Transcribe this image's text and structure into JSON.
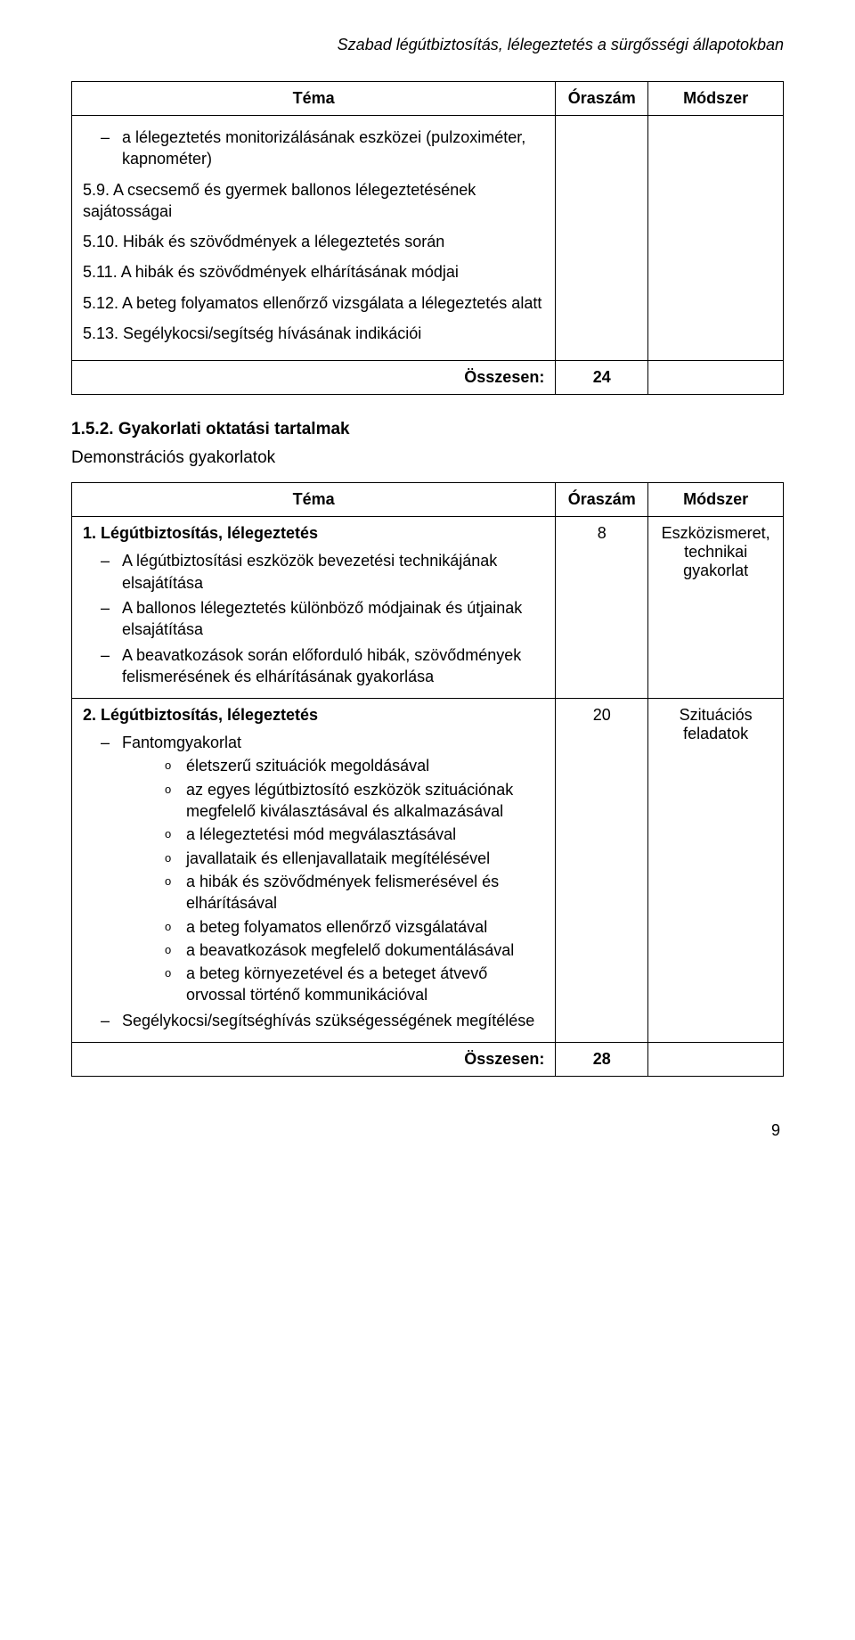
{
  "header": {
    "title": "Szabad légútbiztosítás, lélegeztetés a sürgősségi állapotokban"
  },
  "table1": {
    "headers": {
      "tema": "Téma",
      "oraszam": "Óraszám",
      "modszer": "Módszer"
    },
    "item_dash": "a lélegeztetés monitorizálásának eszközei (pulzoximéter, kapnométer)",
    "p1": "5.9. A csecsemő és gyermek ballonos lélegeztetésének sajátosságai",
    "p2": "5.10. Hibák és szövődmények a lélegeztetés során",
    "p3": "5.11. A hibák és szövődmények elhárításának módjai",
    "p4": "5.12. A beteg folyamatos ellenőrző vizsgálata a lélegeztetés alatt",
    "p5": "5.13. Segélykocsi/segítség hívásának indikációi",
    "total_label": "Összesen:",
    "total_value": "24"
  },
  "section": {
    "number": "1.5.2. Gyakorlati oktatási tartalmak",
    "subhead": "Demonstrációs gyakorlatok"
  },
  "table2": {
    "headers": {
      "tema": "Téma",
      "oraszam": "Óraszám",
      "modszer": "Módszer"
    },
    "row1": {
      "title": "1. Légútbiztosítás, lélegeztetés",
      "b1": "A légútbiztosítási eszközök bevezetési technikájának elsajátítása",
      "b2": "A ballonos lélegeztetés különböző módjainak és útjainak elsajátítása",
      "b3": "A beavatkozások során előforduló hibák, szövődmények felismerésének és elhárításának gyakorlása",
      "oraszam": "8",
      "modszer": "Eszközismeret, technikai gyakorlat"
    },
    "row2": {
      "title": "2. Légútbiztosítás, lélegeztetés",
      "b1": "Fantomgyakorlat",
      "s1": "életszerű szituációk megoldásával",
      "s2": "az egyes légútbiztosító eszközök szituációnak megfelelő kiválasztásával és alkalmazásával",
      "s3": "a lélegeztetési mód megválasztásával",
      "s4": "javallataik és ellenjavallataik megítélésével",
      "s5": "a hibák és szövődmények felismerésével és elhárításával",
      "s6": "a beteg folyamatos ellenőrző vizsgálatával",
      "s7": "a beavatkozások megfelelő dokumentálásával",
      "s8": "a beteg környezetével és a beteget átvevő orvossal történő kommunikációval",
      "b2": "Segélykocsi/segítséghívás szükségességének megítélése",
      "oraszam": "20",
      "modszer": "Szituációs feladatok"
    },
    "total_label": "Összesen:",
    "total_value": "28"
  },
  "page_number": "9"
}
